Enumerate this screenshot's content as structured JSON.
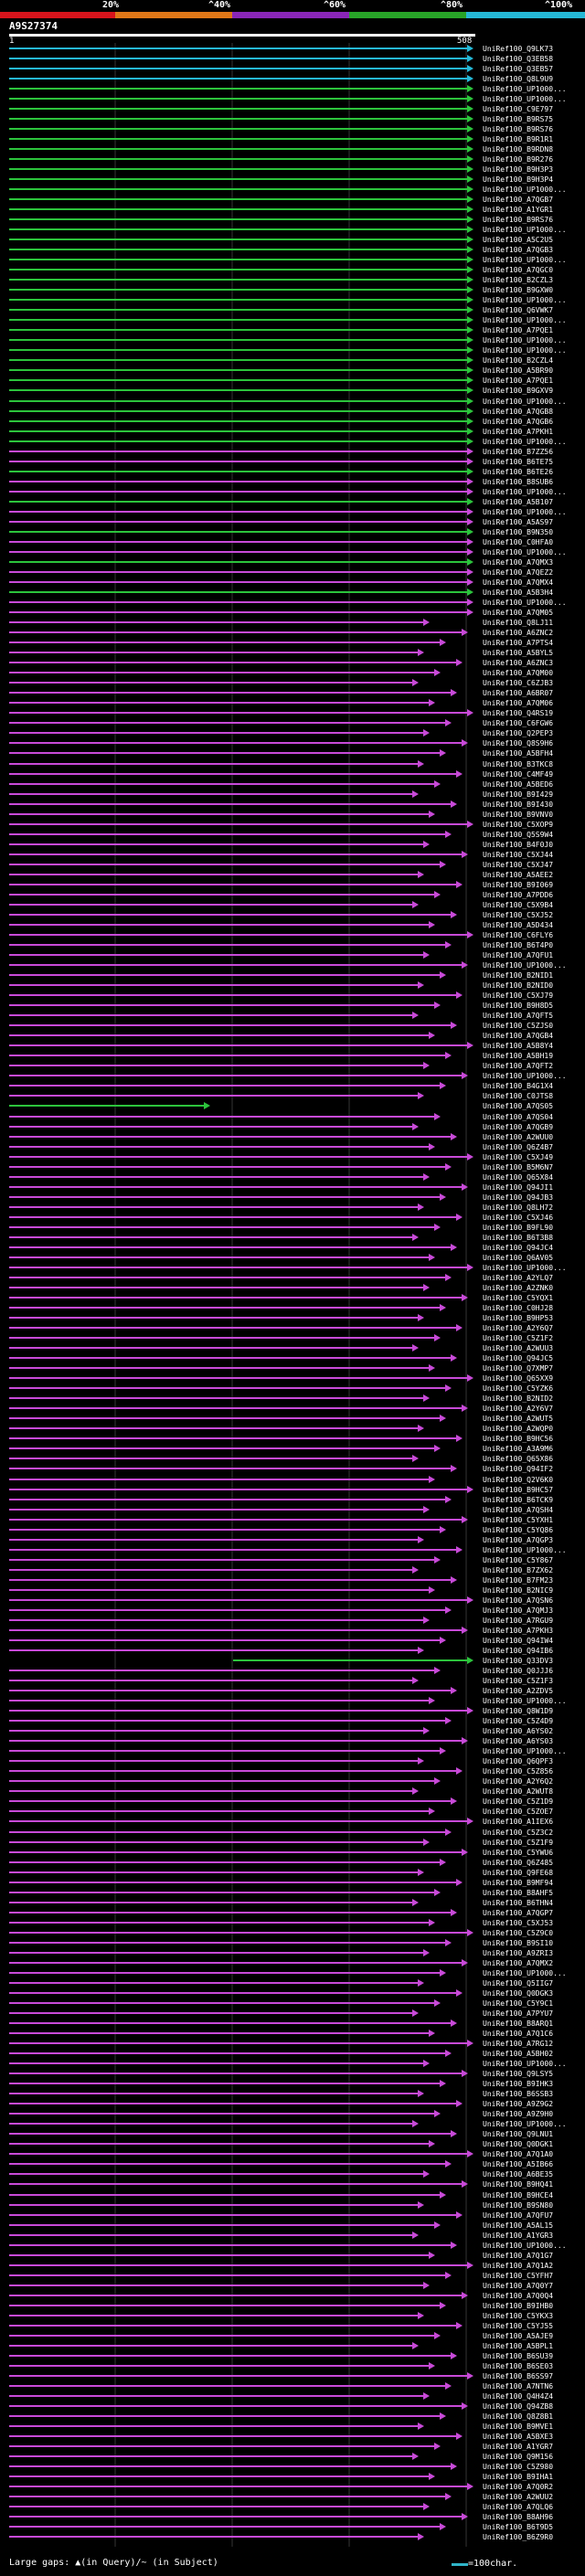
{
  "colors": {
    "red": "#d8141c",
    "orange": "#e07818",
    "purple": "#8a26b8",
    "green": "#28a428",
    "cyan": "#25b8d6",
    "magenta": "#c84ad8",
    "bright_green": "#2cc43c",
    "background": "#000000",
    "tick": "#ffffff"
  },
  "scale_labels": [
    "20%",
    "^40%",
    "^60%",
    "^80%",
    "^100%"
  ],
  "query": {
    "title": "A9S27374",
    "start": "1",
    "end": "508"
  },
  "legend": {
    "text": "Large gaps: ▲(in Query)/~ (in Subject)",
    "unit": "=100char."
  },
  "hits": [
    "UniRef100_Q9LK73",
    "UniRef100_Q3EB58",
    "UniRef100_Q3EB57",
    "UniRef100_Q8L9U9",
    "UniRef100_UP1000...",
    "UniRef100_UP1000...",
    "UniRef100_C9E797",
    "UniRef100_B9RS75",
    "UniRef100_B9RS76",
    "UniRef100_B9R1R1",
    "UniRef100_B9RDN8",
    "UniRef100_B9R276",
    "UniRef100_B9H3P3",
    "UniRef100_B9H3P4",
    "UniRef100_UP1000...",
    "UniRef100_A7QGB7",
    "UniRef100_A1YGR1",
    "UniRef100_B9RS76",
    "UniRef100_UP1000...",
    "UniRef100_A5C2U5",
    "UniRef100_A7QGB3",
    "UniRef100_UP1000...",
    "UniRef100_A7QGC0",
    "UniRef100_B2CZL3",
    "UniRef100_B9GXW0",
    "UniRef100_UP1000...",
    "UniRef100_Q6VWK7",
    "UniRef100_UP1000...",
    "UniRef100_A7PQE1",
    "UniRef100_UP1000...",
    "UniRef100_UP1000...",
    "UniRef100_B2CZL4",
    "UniRef100_A5BR90",
    "UniRef100_A7PQE1",
    "UniRef100_B9GXV9",
    "UniRef100_UP1000...",
    "UniRef100_A7QGB8",
    "UniRef100_A7QGB6",
    "UniRef100_A7PKH1",
    "UniRef100_UP1000...",
    "UniRef100_B7ZZ56",
    "UniRef100_B6TE75",
    "UniRef100_B6TE26",
    "UniRef100_B8SUB6",
    "UniRef100_UP1000...",
    "UniRef100_A5B107",
    "UniRef100_UP1000...",
    "UniRef100_A5AS97",
    "UniRef100_B9N350",
    "UniRef100_C0HFA0",
    "UniRef100_UP1000...",
    "UniRef100_A7QMX3",
    "UniRef100_A7QEZ2",
    "UniRef100_A7QMX4",
    "UniRef100_A5B3H4",
    "UniRef100_UP1000...",
    "UniRef100_A7QM05",
    "UniRef100_Q8LJ11",
    "UniRef100_A6ZNC2",
    "UniRef100_A7PTS4",
    "UniRef100_A5BYL5",
    "UniRef100_A6ZNC3",
    "UniRef100_A7QM00",
    "UniRef100_C6ZJB3",
    "UniRef100_A6BR07",
    "UniRef100_A7QM06",
    "UniRef100_Q4RS19",
    "UniRef100_C6FGW6",
    "UniRef100_Q2PEP3",
    "UniRef100_Q8S9H6",
    "UniRef100_A5BFH4",
    "UniRef100_B3TKC8",
    "UniRef100_C4MF49",
    "UniRef100_A5BED6",
    "UniRef100_B9I429",
    "UniRef100_B9I430",
    "UniRef100_B9VNV0",
    "UniRef100_C5XOP9",
    "UniRef100_Q5S9W4",
    "UniRef100_B4F0J0",
    "UniRef100_C5XJ44",
    "UniRef100_C5XJ47",
    "UniRef100_A5AEE2",
    "UniRef100_B9I069",
    "UniRef100_A7PDD6",
    "UniRef100_C5X9B4",
    "UniRef100_C5XJ52",
    "UniRef100_A5D434",
    "UniRef100_C6FLY6",
    "UniRef100_B6T4P0",
    "UniRef100_A7QFU1",
    "UniRef100_UP1000...",
    "UniRef100_B2NID1",
    "UniRef100_B2NID0",
    "UniRef100_C5XJ79",
    "UniRef100_B9H8D5",
    "UniRef100_A7QFT5",
    "UniRef100_C5ZJS0",
    "UniRef100_A7QGB4",
    "UniRef100_A5B8Y4",
    "UniRef100_A5BH19",
    "UniRef100_A7QFT2",
    "UniRef100_UP1000...",
    "UniRef100_B4G1X4",
    "UniRef100_C0JTS8",
    "UniRef100_A7QS05",
    "UniRef100_A7QS04",
    "UniRef100_A7QGB9",
    "UniRef100_A2WUU0",
    "UniRef100_Q6Z4B7",
    "UniRef100_C5XJ49",
    "UniRef100_B5M6N7",
    "UniRef100_Q65X84",
    "UniRef100_Q94JI1",
    "UniRef100_Q94JB3",
    "UniRef100_Q8LH72",
    "UniRef100_C5XJ46",
    "UniRef100_B9FL90",
    "UniRef100_B6T3B8",
    "UniRef100_Q94JC4",
    "UniRef100_Q6AV05",
    "UniRef100_UP1000...",
    "UniRef100_A2YLQ7",
    "UniRef100_A2ZNK0",
    "UniRef100_C5YQX1",
    "UniRef100_C0HJ28",
    "UniRef100_B9HP53",
    "UniRef100_A2Y6Q7",
    "UniRef100_C5Z1F2",
    "UniRef100_A2WUU3",
    "UniRef100_Q94JC5",
    "UniRef100_Q7XMP7",
    "UniRef100_Q65XX9",
    "UniRef100_C5YZK6",
    "UniRef100_B2NID2",
    "UniRef100_A2Y6V7",
    "UniRef100_A2WUT5",
    "UniRef100_A2WQP0",
    "UniRef100_B9HC56",
    "UniRef100_A3A9M6",
    "UniRef100_Q65X86",
    "UniRef100_Q94IF2",
    "UniRef100_Q2V6K0",
    "UniRef100_B9HC57",
    "UniRef100_B6TCK9",
    "UniRef100_A7QSH4",
    "UniRef100_C5YXH1",
    "UniRef100_C5YQ86",
    "UniRef100_A7QGP3",
    "UniRef100_UP1000...",
    "UniRef100_C5Y867",
    "UniRef100_B7ZX62",
    "UniRef100_B7FM23",
    "UniRef100_B2NIC9",
    "UniRef100_A7QSN6",
    "UniRef100_A7QMJ3",
    "UniRef100_A7RGU9",
    "UniRef100_A7PKH3",
    "UniRef100_Q94IW4",
    "UniRef100_Q94IB6",
    "UniRef100_Q33DV3",
    "UniRef100_Q0JJJ6",
    "UniRef100_C5Z1F3",
    "UniRef100_A2ZDV5",
    "UniRef100_UP1000...",
    "UniRef100_Q8W1D9",
    "UniRef100_C5Z4D9",
    "UniRef100_A6YS02",
    "UniRef100_A6YS03",
    "UniRef100_UP1000...",
    "UniRef100_Q6QPF3",
    "UniRef100_C5Z856",
    "UniRef100_A2Y6Q2",
    "UniRef100_A2WUT8",
    "UniRef100_C5Z1D9",
    "UniRef100_C5ZOE7",
    "UniRef100_A1IEX6",
    "UniRef100_C5Z3C2",
    "UniRef100_C5Z1F9",
    "UniRef100_C5YWU6",
    "UniRef100_Q6Z485",
    "UniRef100_Q9FE68",
    "UniRef100_B9MF94",
    "UniRef100_B8AHF5",
    "UniRef100_B6THN4",
    "UniRef100_A7QGP7",
    "UniRef100_C5XJ53",
    "UniRef100_C5Z9C0",
    "UniRef100_B9SI10",
    "UniRef100_A9ZRI3",
    "UniRef100_A7QMX2",
    "UniRef100_UP1000...",
    "UniRef100_Q5IIG7",
    "UniRef100_Q0DGK3",
    "UniRef100_C5Y9C1",
    "UniRef100_A7PYU7",
    "UniRef100_B8ARQ1",
    "UniRef100_A7Q1C6",
    "UniRef100_A7RG12",
    "UniRef100_A5BH02",
    "UniRef100_UP1000...",
    "UniRef100_Q9LSY5",
    "UniRef100_B9IHK3",
    "UniRef100_B6SSB3",
    "UniRef100_A9Z9G2",
    "UniRef100_A9Z9H0",
    "UniRef100_UP1000...",
    "UniRef100_Q9LNU1",
    "UniRef100_Q0DGK1",
    "UniRef100_A7Q1A0",
    "UniRef100_A5IB66",
    "UniRef100_A6BE35",
    "UniRef100_B9HQ41",
    "UniRef100_B9HCE4",
    "UniRef100_B9SN80",
    "UniRef100_A7QFU7",
    "UniRef100_A5AL15",
    "UniRef100_A1YGR3",
    "UniRef100_UP1000...",
    "UniRef100_A7Q1G7",
    "UniRef100_A7Q1A2",
    "UniRef100_C5YFH7",
    "UniRef100_A7Q0Y7",
    "UniRef100_A7Q0Q4",
    "UniRef100_B9IHB0",
    "UniRef100_C5YKX3",
    "UniRef100_C5YJ55",
    "UniRef100_A5AJE9",
    "UniRef100_A5BPL1",
    "UniRef100_B6SU39",
    "UniRef100_B6SE03",
    "UniRef100_B6SS97",
    "UniRef100_A7NTN6",
    "UniRef100_Q4H4Z4",
    "UniRef100_Q94ZB8",
    "UniRef100_Q8Z8B1",
    "UniRef100_B9MVE1",
    "UniRef100_A5BXE3",
    "UniRef100_A1YGR7",
    "UniRef100_Q9M156",
    "UniRef100_C5Z980",
    "UniRef100_B9IHA1",
    "UniRef100_A7Q0R2",
    "UniRef100_A2WUU2",
    "UniRef100_A7QLQ6",
    "UniRef100_B8AH96",
    "UniRef100_B6T9D5",
    "UniRef100_B6Z9R0"
  ]
}
